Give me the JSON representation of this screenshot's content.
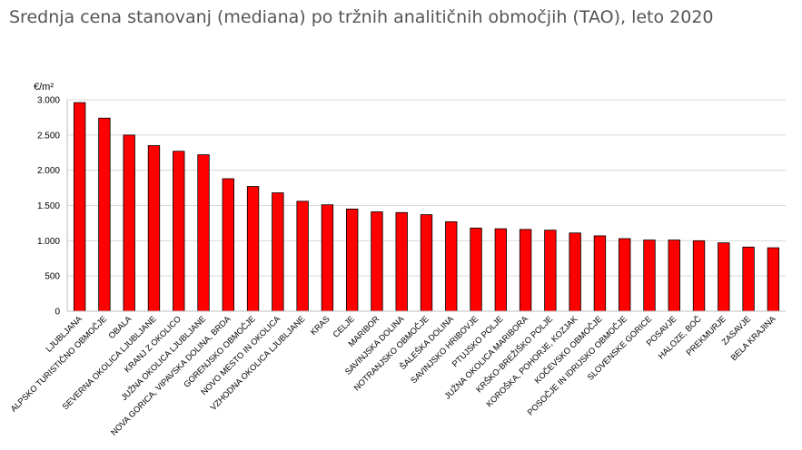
{
  "page": {
    "title": "Srednja cena stanovanj (mediana) po tržnih analitičnih območjih (TAO), leto 2020"
  },
  "chart_data": {
    "type": "bar",
    "title": "Srednja cena stanovanj (mediana) po tržnih analitičnih območjih (TAO), leto 2020",
    "ylabel": "€/m²",
    "xlabel": "",
    "ylim": [
      0,
      3000
    ],
    "yticks": [
      0,
      500,
      1000,
      1500,
      2000,
      2500,
      3000
    ],
    "ytick_labels": [
      "0",
      "500",
      "1.000",
      "1.500",
      "2.000",
      "2.500",
      "3.000"
    ],
    "grid": true,
    "legend": "none",
    "bar_color": "#ff0000",
    "categories": [
      "LJUBLJANA",
      "ALPSKO TURISTIČNO OBMOČJE",
      "OBALA",
      "SEVERNA OKOLICA LJUBLJANE",
      "KRANJ Z OKOLICO",
      "JUŽNA OKOLICA LJUBLJANE",
      "NOVA GORICA, VIPAVSKA DOLINA, BRDA",
      "GORENJSKO OBMOČJE",
      "NOVO MESTO IN OKOLICA",
      "VZHODNA OKOLICA LJUBLJANE",
      "KRAS",
      "CELJE",
      "MARIBOR",
      "SAVINJSKA DOLINA",
      "NOTRANJSKO OBMOČJE",
      "ŠALEŠKA DOLINA",
      "SAVINJSKO HRIBOVJE",
      "PTUJSKO POLJE",
      "JUŽNA OKOLICA MARIBORA",
      "KRŠKO-BREŽIŠKO POLJE",
      "KOROŠKA, POHORJE, KOZJAK",
      "KOČEVSKO OBMOČJE",
      "POSOČJE IN IDRIJSKO OBMOČJE",
      "SLOVENSKE GORICE",
      "POSAVJE",
      "HALOZE, BOČ",
      "PREKMURJE",
      "ZASAVJE",
      "BELA KRAJINA"
    ],
    "values": [
      2960,
      2740,
      2500,
      2350,
      2270,
      2220,
      1880,
      1770,
      1680,
      1560,
      1510,
      1450,
      1410,
      1400,
      1370,
      1270,
      1180,
      1170,
      1160,
      1150,
      1110,
      1070,
      1030,
      1010,
      1010,
      1000,
      970,
      910,
      900
    ]
  }
}
